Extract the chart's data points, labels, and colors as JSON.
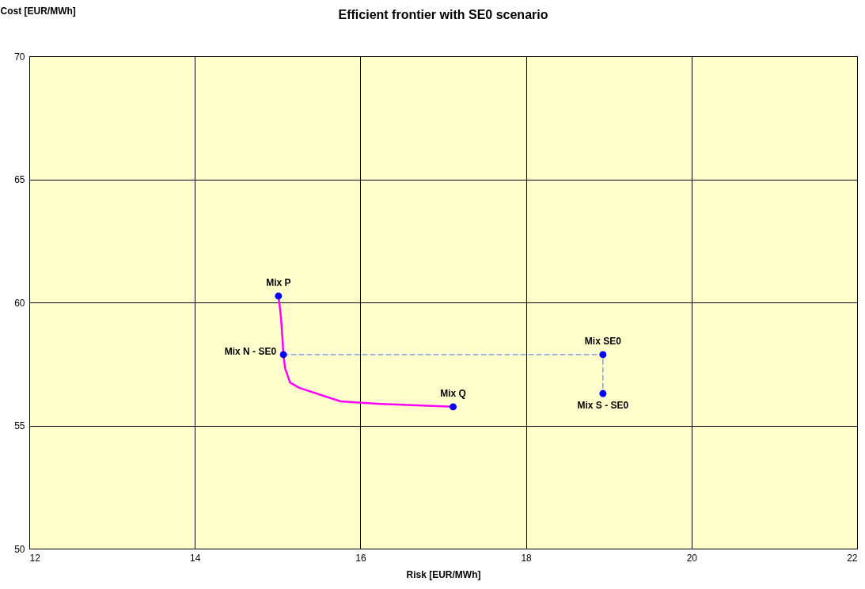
{
  "chart_data": {
    "type": "line",
    "title": "Efficient frontier with SE0 scenario",
    "xlabel": "Risk  [EUR/MWh]",
    "ylabel": "Cost [EUR/MWh]",
    "xlim": [
      12,
      22
    ],
    "xticks": [
      12,
      14,
      16,
      18,
      20,
      22
    ],
    "ylim": [
      50,
      70
    ],
    "yticks": [
      50,
      55,
      60,
      65,
      70
    ],
    "grid": true,
    "series": [
      {
        "type": "line",
        "color": "#ff00ff",
        "x": [
          15.01,
          15.04,
          15.06,
          15.07,
          15.09,
          15.15,
          15.26,
          15.76,
          16.24,
          17.12
        ],
        "values": [
          60.26,
          59.42,
          58.46,
          57.88,
          57.33,
          56.75,
          56.53,
          55.98,
          55.88,
          55.76
        ]
      },
      {
        "type": "line",
        "color": "#4a6cf0",
        "line_style": "dashed",
        "x": [
          15.07,
          18.93,
          18.93
        ],
        "values": [
          57.88,
          57.88,
          56.3
        ]
      },
      {
        "type": "scatter",
        "color": "#0000ff",
        "marker": "circle",
        "x": [
          15.01,
          15.07,
          17.12,
          18.93,
          18.93
        ],
        "values": [
          60.26,
          57.88,
          55.76,
          57.88,
          56.3
        ]
      }
    ],
    "annotations": [
      {
        "text": "Mix P",
        "x": 15.01,
        "y": 60.26
      },
      {
        "text": "Mix N - SE0",
        "x": 15.07,
        "y": 57.88
      },
      {
        "text": "Mix Q",
        "x": 17.12,
        "y": 55.76
      },
      {
        "text": "Mix SE0",
        "x": 18.93,
        "y": 57.88
      },
      {
        "text": "Mix S - SE0",
        "x": 18.93,
        "y": 56.3
      }
    ]
  }
}
